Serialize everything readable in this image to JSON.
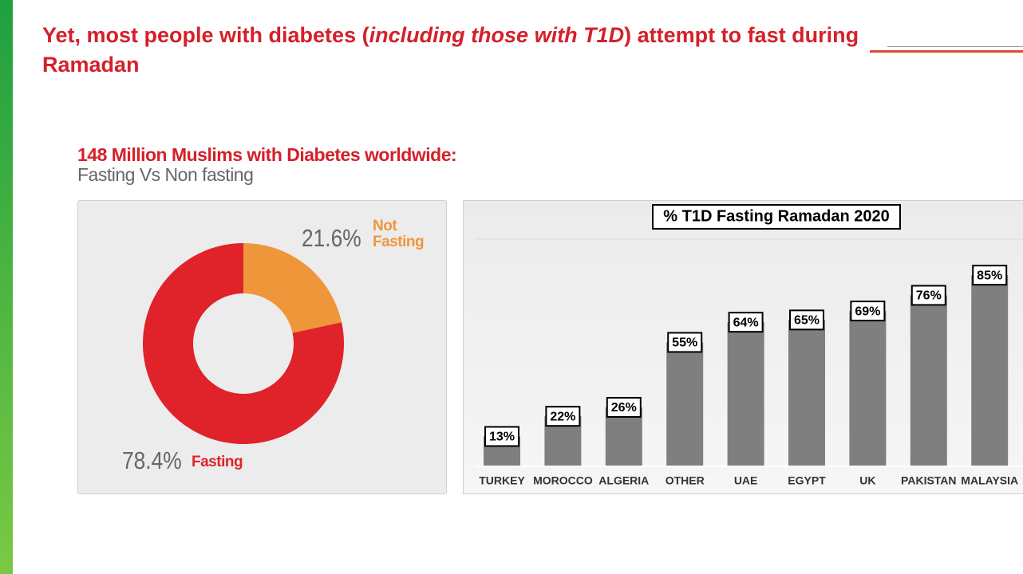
{
  "title_parts": [
    "Yet, most people with diabetes (",
    "including those with T1D",
    ") attempt to fast during Ramadan"
  ],
  "subtitle": "148 Million Muslims with Diabetes worldwide:",
  "subtitle2": "Fasting Vs Non fasting",
  "chart_data": [
    {
      "type": "pie",
      "categories": [
        "Not Fasting",
        "Fasting"
      ],
      "values": [
        21.6,
        78.4
      ],
      "value_labels": [
        "21.6%",
        "78.4%"
      ],
      "colors": [
        "#f0963a",
        "#e0222a"
      ]
    },
    {
      "type": "bar",
      "title": "% T1D Fasting Ramadan 2020",
      "categories": [
        "TURKEY",
        "MOROCCO",
        "ALGERIA",
        "OTHER",
        "UAE",
        "EGYPT",
        "UK",
        "PAKISTAN",
        "MALAYSIA"
      ],
      "values": [
        13,
        22,
        26,
        55,
        64,
        65,
        69,
        76,
        85
      ],
      "value_labels": [
        "13%",
        "22%",
        "26%",
        "55%",
        "64%",
        "65%",
        "69%",
        "76%",
        "85%"
      ],
      "color": "#7f7f7f"
    }
  ]
}
